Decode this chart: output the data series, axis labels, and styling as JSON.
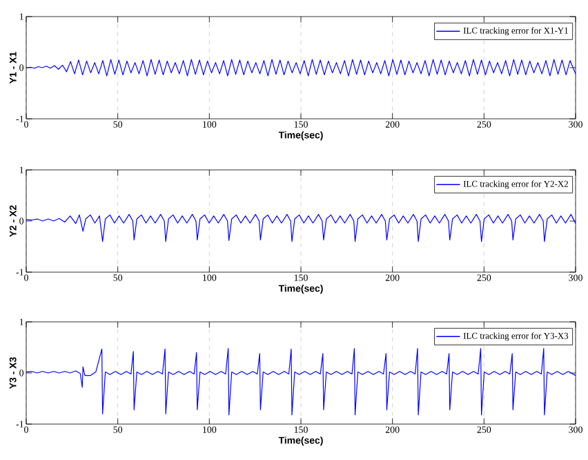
{
  "chart_data": [
    {
      "type": "line",
      "xlabel": "Time(sec)",
      "ylabel": "Y1 - X1",
      "xlim": [
        0,
        300
      ],
      "ylim": [
        -1,
        1
      ],
      "xticks": [
        0,
        50,
        100,
        150,
        200,
        250,
        300
      ],
      "yticks": [
        -1,
        0,
        1
      ],
      "grid": "x",
      "legend": "top right",
      "x": [
        0,
        2.2,
        4.4,
        6.6,
        8.8,
        11,
        13.2,
        15.4,
        17.6,
        19.8,
        22,
        24.2,
        26.4,
        28.6,
        30.8,
        33,
        35.2,
        37.4,
        39.6,
        41.8,
        44,
        46.2,
        48.4,
        50.6,
        52.8,
        55,
        57.2,
        59.4,
        61.6,
        63.8,
        66,
        68.2,
        70.4,
        72.6,
        74.8,
        77,
        79.2,
        81.4,
        83.6,
        85.8,
        88,
        90.2,
        92.4,
        94.6,
        96.8,
        99,
        101.2,
        103.4,
        105.6,
        107.8,
        110,
        112.2,
        114.4,
        116.6,
        118.8,
        121,
        123.2,
        125.4,
        127.6,
        129.8,
        132,
        134.2,
        136.4,
        138.6,
        140.8,
        143,
        145.2,
        147.4,
        149.6,
        151.8,
        154,
        156.2,
        158.4,
        160.6,
        162.8,
        165,
        167.2,
        169.4,
        171.6,
        173.8,
        176,
        178.2,
        180.4,
        182.6,
        184.8,
        187,
        189.2,
        191.4,
        193.6,
        195.8,
        198,
        200.2,
        202.4,
        204.6,
        206.8,
        209,
        211.2,
        213.4,
        215.6,
        217.8,
        220,
        222.2,
        224.4,
        226.6,
        228.8,
        231,
        233.2,
        235.4,
        237.6,
        239.8,
        242,
        244.2,
        246.4,
        248.6,
        250.8,
        253,
        255.2,
        257.4,
        259.6,
        261.8,
        264,
        266.2,
        268.4,
        270.6,
        272.8,
        275,
        277.2,
        279.4,
        281.6,
        283.8,
        286,
        288.2,
        290.4,
        292.6,
        294.8,
        297,
        300
      ],
      "series": [
        {
          "name": "ILC tracking error for X1-Y1",
          "color": "#0000ff",
          "values": [
            0,
            0.01,
            -0.01,
            0.02,
            0,
            0.03,
            -0.01,
            0.04,
            -0.03,
            0.05,
            -0.08,
            0.12,
            -0.12,
            0.15,
            -0.14,
            0.13,
            -0.1,
            0.1,
            -0.12,
            0.14,
            -0.16,
            0.16,
            -0.13,
            0.15,
            -0.14,
            0.13,
            -0.1,
            0.1,
            -0.12,
            0.14,
            -0.16,
            0.16,
            -0.13,
            0.15,
            -0.14,
            0.13,
            -0.1,
            0.1,
            -0.12,
            0.14,
            -0.16,
            0.16,
            -0.13,
            0.15,
            -0.14,
            0.13,
            -0.1,
            0.1,
            -0.12,
            0.14,
            -0.16,
            0.16,
            -0.13,
            0.15,
            -0.14,
            0.13,
            -0.1,
            0.1,
            -0.12,
            0.14,
            -0.16,
            0.16,
            -0.13,
            0.15,
            -0.14,
            0.13,
            -0.1,
            0.1,
            -0.12,
            0.14,
            -0.16,
            0.16,
            -0.13,
            0.15,
            -0.14,
            0.13,
            -0.1,
            0.1,
            -0.12,
            0.14,
            -0.16,
            0.16,
            -0.13,
            0.15,
            -0.14,
            0.13,
            -0.1,
            0.1,
            -0.12,
            0.14,
            -0.16,
            0.16,
            -0.13,
            0.15,
            -0.14,
            0.13,
            -0.1,
            0.1,
            -0.12,
            0.14,
            -0.16,
            0.16,
            -0.13,
            0.15,
            -0.14,
            0.13,
            -0.1,
            0.1,
            -0.12,
            0.14,
            -0.16,
            0.16,
            -0.13,
            0.15,
            -0.14,
            0.13,
            -0.1,
            0.1,
            -0.12,
            0.14,
            -0.16,
            0.16,
            -0.13,
            0.15,
            -0.14,
            0.13,
            -0.1,
            0.1,
            -0.12,
            0.14,
            -0.16,
            0.16,
            -0.13,
            0.15,
            -0.14,
            0.14,
            -0.12
          ]
        }
      ]
    },
    {
      "type": "line",
      "xlabel": "Time(sec)",
      "ylabel": "Y2 - X2",
      "xlim": [
        0,
        300
      ],
      "ylim": [
        -1,
        1
      ],
      "xticks": [
        0,
        50,
        100,
        150,
        200,
        250,
        300
      ],
      "yticks": [
        -1,
        0,
        1
      ],
      "grid": "x",
      "legend": "top right",
      "x": [
        0,
        3,
        6,
        9,
        12,
        15,
        18,
        21,
        24,
        27,
        29,
        31,
        32.5,
        35,
        37.5,
        40,
        41.7,
        43.2,
        45.7,
        48.2,
        50.7,
        53.2,
        56.2,
        58.2,
        58.9,
        60.4,
        62.9,
        65.4,
        67.9,
        70.4,
        73.4,
        75.4,
        76.2,
        77.7,
        80.2,
        82.7,
        85.2,
        87.7,
        90.7,
        92.7,
        93.4,
        94.9,
        97.4,
        99.9,
        102.4,
        104.9,
        107.9,
        109.9,
        110.7,
        112.2,
        114.7,
        117.2,
        119.7,
        122.2,
        125.2,
        127.2,
        127.9,
        129.4,
        131.9,
        134.4,
        136.9,
        139.4,
        142.4,
        144.4,
        145.1,
        146.6,
        149.1,
        151.6,
        154.1,
        156.6,
        159.6,
        161.6,
        162.4,
        163.9,
        166.4,
        168.9,
        171.4,
        173.9,
        176.9,
        178.9,
        179.6,
        181.1,
        183.6,
        186.1,
        188.6,
        191.1,
        194.1,
        196.1,
        196.9,
        198.4,
        200.9,
        203.4,
        205.9,
        208.4,
        211.4,
        213.4,
        214.1,
        215.6,
        218.1,
        220.6,
        223.1,
        225.6,
        228.6,
        230.6,
        231.3,
        232.8,
        235.3,
        237.8,
        240.3,
        242.8,
        245.8,
        247.8,
        248.6,
        250.1,
        252.6,
        255.1,
        257.6,
        260.1,
        263.1,
        265.1,
        265.8,
        267.3,
        269.8,
        272.3,
        274.8,
        277.3,
        280.3,
        282.3,
        283,
        284.5,
        287,
        289.5,
        292,
        294.5,
        297.5,
        300
      ],
      "series": [
        {
          "name": "ILC tracking error for Y2-X2",
          "color": "#0000ff",
          "values": [
            0.03,
            0.02,
            0.04,
            0,
            0.04,
            0,
            0.05,
            -0.02,
            0.1,
            -0.05,
            0.12,
            -0.2,
            0.04,
            0.12,
            -0.04,
            0.1,
            -0.4,
            0.04,
            0.12,
            -0.04,
            0.1,
            -0.04,
            0.13,
            0,
            -0.37,
            0.04,
            0.12,
            -0.04,
            0.1,
            -0.04,
            0.13,
            0,
            -0.4,
            0.04,
            0.12,
            -0.04,
            0.1,
            -0.04,
            0.13,
            0,
            -0.37,
            0.04,
            0.12,
            -0.04,
            0.1,
            -0.04,
            0.13,
            0,
            -0.38,
            0.04,
            0.12,
            -0.04,
            0.1,
            -0.04,
            0.13,
            0,
            -0.37,
            0.04,
            0.12,
            -0.04,
            0.1,
            -0.04,
            0.13,
            0,
            -0.4,
            0.04,
            0.12,
            -0.04,
            0.1,
            -0.04,
            0.13,
            0,
            -0.37,
            0.04,
            0.12,
            -0.04,
            0.1,
            -0.04,
            0.13,
            0,
            -0.4,
            0.04,
            0.12,
            -0.04,
            0.1,
            -0.04,
            0.13,
            0,
            -0.37,
            0.04,
            0.12,
            -0.04,
            0.1,
            -0.04,
            0.13,
            0,
            -0.4,
            0.04,
            0.12,
            -0.04,
            0.1,
            -0.04,
            0.13,
            0,
            -0.37,
            0.04,
            0.12,
            -0.04,
            0.1,
            -0.04,
            0.13,
            0,
            -0.4,
            0.04,
            0.12,
            -0.04,
            0.1,
            -0.04,
            0.13,
            0,
            -0.37,
            0.04,
            0.12,
            -0.04,
            0.1,
            -0.04,
            0.13,
            0,
            -0.4,
            0.04,
            0.12,
            -0.04,
            0.1,
            -0.04,
            0.13,
            -0.05
          ]
        }
      ]
    },
    {
      "type": "line",
      "xlabel": "Time(sec)",
      "ylabel": "Y3 - X3",
      "xlim": [
        0,
        300
      ],
      "ylim": [
        -1,
        1
      ],
      "xticks": [
        0,
        50,
        100,
        150,
        200,
        250,
        300
      ],
      "yticks": [
        -1,
        0,
        1
      ],
      "grid": "x",
      "legend": "top right",
      "x": [
        0,
        3,
        6,
        9,
        12,
        15,
        18,
        21,
        24,
        27,
        29.5,
        30.6,
        31,
        32,
        35,
        38,
        41.3,
        41.7,
        43.2,
        45.7,
        48.7,
        51.7,
        54.7,
        57.2,
        58.5,
        58.9,
        60.4,
        62.9,
        65.9,
        68.9,
        71.9,
        74.4,
        75.8,
        76.2,
        77.7,
        80.2,
        83.2,
        86.2,
        89.2,
        91.7,
        93,
        93.4,
        94.9,
        97.4,
        100.4,
        103.4,
        106.4,
        108.9,
        110.3,
        110.7,
        112.2,
        114.7,
        117.7,
        120.7,
        123.7,
        126.2,
        127.5,
        127.9,
        129.4,
        131.9,
        134.9,
        137.9,
        140.9,
        143.4,
        144.7,
        145.1,
        146.6,
        149.1,
        152.1,
        155.1,
        158.1,
        160.6,
        162,
        162.4,
        163.9,
        166.4,
        169.4,
        172.4,
        175.4,
        177.9,
        179.2,
        179.6,
        181.1,
        183.6,
        186.6,
        189.6,
        192.6,
        195.1,
        196.5,
        196.9,
        198.4,
        200.9,
        203.9,
        206.9,
        209.9,
        212.4,
        213.7,
        214.1,
        215.6,
        218.1,
        221.1,
        224.1,
        227.1,
        229.6,
        230.9,
        231.3,
        232.8,
        235.3,
        238.3,
        241.3,
        244.3,
        246.8,
        248.2,
        248.6,
        250.1,
        252.6,
        255.6,
        258.6,
        261.6,
        264.1,
        265.4,
        265.8,
        267.3,
        269.8,
        272.8,
        275.8,
        278.8,
        281.3,
        282.6,
        283,
        284.5,
        287,
        290,
        293,
        296,
        300
      ],
      "series": [
        {
          "name": "ILC tracking error for Y3-X3",
          "color": "#0000ff",
          "values": [
            0.02,
            0.03,
            0,
            0.03,
            0,
            0.03,
            0,
            0.03,
            0,
            0.04,
            -0.01,
            -0.28,
            0.12,
            -0.05,
            -0.05,
            0.02,
            0.47,
            -0.8,
            0.02,
            -0.03,
            0.03,
            -0.03,
            0.03,
            -0.02,
            0.42,
            -0.72,
            0.02,
            -0.03,
            0.03,
            -0.03,
            0.03,
            -0.02,
            0.47,
            -0.8,
            0.02,
            -0.03,
            0.03,
            -0.03,
            0.03,
            -0.02,
            0.4,
            -0.72,
            0.02,
            -0.03,
            0.03,
            -0.03,
            0.03,
            -0.02,
            0.48,
            -0.82,
            0.02,
            -0.03,
            0.03,
            -0.03,
            0.03,
            -0.02,
            0.38,
            -0.72,
            0.02,
            -0.03,
            0.03,
            -0.03,
            0.03,
            -0.02,
            0.47,
            -0.82,
            0.02,
            -0.03,
            0.03,
            -0.03,
            0.03,
            -0.02,
            0.38,
            -0.72,
            0.02,
            -0.03,
            0.03,
            -0.03,
            0.03,
            -0.02,
            0.48,
            -0.82,
            0.02,
            -0.03,
            0.03,
            -0.03,
            0.03,
            -0.02,
            0.38,
            -0.72,
            0.02,
            -0.03,
            0.03,
            -0.03,
            0.03,
            -0.02,
            0.48,
            -0.82,
            0.02,
            -0.03,
            0.03,
            -0.03,
            0.03,
            -0.02,
            0.38,
            -0.72,
            0.02,
            -0.03,
            0.03,
            -0.03,
            0.03,
            -0.02,
            0.48,
            -0.82,
            0.02,
            -0.03,
            0.03,
            -0.03,
            0.03,
            -0.02,
            0.38,
            -0.72,
            0.02,
            -0.03,
            0.03,
            -0.03,
            0.03,
            -0.02,
            0.48,
            -0.82,
            0.02,
            -0.03,
            0.03,
            -0.03,
            0.03,
            -0.05
          ]
        }
      ]
    }
  ]
}
